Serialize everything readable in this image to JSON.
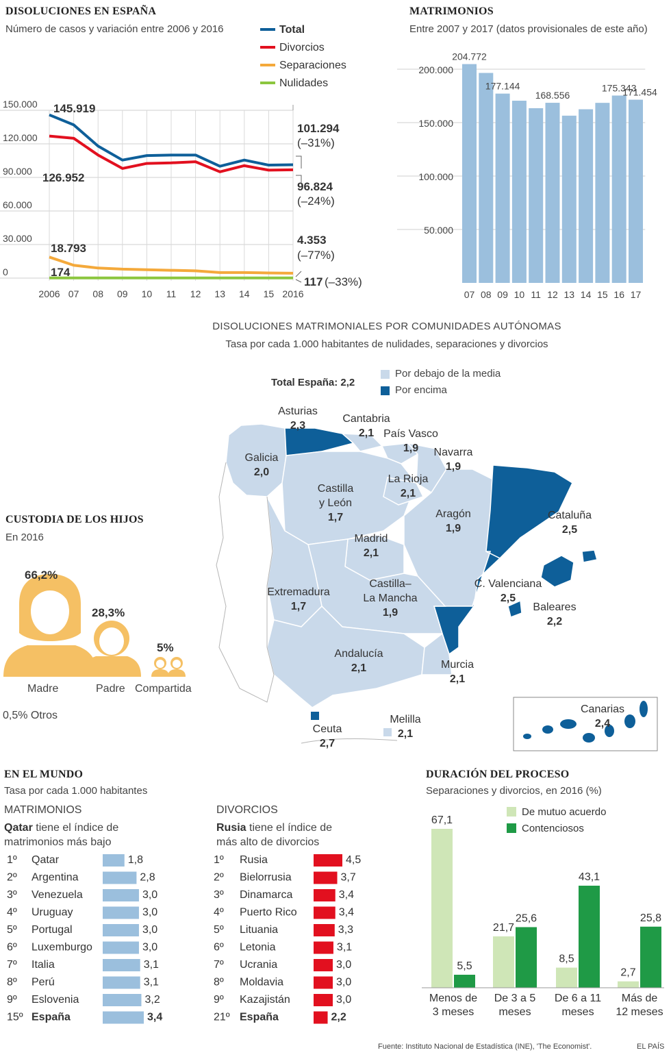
{
  "line_section": {
    "title": "DISOLUCIONES EN ESPAÑA",
    "subtitle": "Número de casos y variación entre 2006 y 2016"
  },
  "bar_section": {
    "title": "MATRIMONIOS",
    "subtitle": "Entre 2007 y 2017 (datos provisionales de este año)"
  },
  "map_section": {
    "title": "DISOLUCIONES MATRIMONIALES POR COMUNIDADES AUTÓNOMAS",
    "subtitle": "Tasa por cada 1.000 habitantes de nulidades, separaciones y divorcios",
    "total_label": "Total España: 2,2",
    "legend_below": "Por debajo de la media",
    "legend_above": "Por encima",
    "colors": {
      "below": "#c9d9ea",
      "above": "#0e5f99"
    },
    "regions": [
      {
        "name": "Asturias",
        "value": "2,3",
        "status": "above"
      },
      {
        "name": "Cantabria",
        "value": "2,1",
        "status": "below"
      },
      {
        "name": "País Vasco",
        "value": "1,9",
        "status": "below"
      },
      {
        "name": "Navarra",
        "value": "1,9",
        "status": "below"
      },
      {
        "name": "Galicia",
        "value": "2,0",
        "status": "below"
      },
      {
        "name": "Castilla",
        "name2": "y León",
        "value": "1,7",
        "status": "below"
      },
      {
        "name": "La Rioja",
        "value": "2,1",
        "status": "below"
      },
      {
        "name": "Aragón",
        "value": "1,9",
        "status": "below"
      },
      {
        "name": "Cataluña",
        "value": "2,5",
        "status": "above"
      },
      {
        "name": "Madrid",
        "value": "2,1",
        "status": "below"
      },
      {
        "name": "C. Valenciana",
        "value": "2,5",
        "status": "above"
      },
      {
        "name": "Extremadura",
        "value": "1,7",
        "status": "below"
      },
      {
        "name": "Castilla–",
        "name2": "La Mancha",
        "value": "1,9",
        "status": "below"
      },
      {
        "name": "Baleares",
        "value": "2,2",
        "status": "above"
      },
      {
        "name": "Andalucía",
        "value": "2,1",
        "status": "below"
      },
      {
        "name": "Murcia",
        "value": "2,1",
        "status": "below"
      },
      {
        "name": "Canarias",
        "value": "2,4",
        "status": "above"
      },
      {
        "name": "Ceuta",
        "value": "2,7",
        "status": "above"
      },
      {
        "name": "Melilla",
        "value": "2,1",
        "status": "below"
      }
    ]
  },
  "custody": {
    "title": "CUSTODIA DE LOS HIJOS",
    "subtitle": "En 2016",
    "color": "#f5c064",
    "items": [
      {
        "label": "Madre",
        "value": "66,2%"
      },
      {
        "label": "Padre",
        "value": "28,3%"
      },
      {
        "label": "Compartida",
        "value": "5%"
      }
    ],
    "others": "0,5% Otros"
  },
  "world": {
    "title": "EN EL MUNDO",
    "subtitle": "Tasa por cada 1.000 habitantes",
    "marriages_heading": "MATRIMONIOS",
    "marriages_note_bold": "Qatar",
    "marriages_note_rest": " tiene el índice de",
    "marriages_note_line2": "matrimonios más bajo",
    "divorces_heading": "DIVORCIOS",
    "divorces_note_bold": "Rusia",
    "divorces_note_rest": " tiene el índice de",
    "divorces_note_line2": "más alto de divorcios"
  },
  "duration": {
    "title": "DURACIÓN DEL PROCESO",
    "subtitle": "Separaciones y divorcios, en 2016 (%)"
  },
  "footer": {
    "source": "Fuente: Instituto Nacional de Estadística (INE), 'The Economist'.",
    "brand": "EL PAÍS"
  },
  "chart_data": [
    {
      "id": "disoluciones",
      "type": "line",
      "x": [
        "2006",
        "07",
        "08",
        "09",
        "10",
        "11",
        "12",
        "13",
        "14",
        "15",
        "2016"
      ],
      "ylim": [
        0,
        150000
      ],
      "yticks": [
        "0",
        "30.000",
        "60.000",
        "90.000",
        "120.000",
        "150.000"
      ],
      "series": [
        {
          "name": "Total",
          "color": "#0e5f99",
          "values": [
            145919,
            137000,
            118000,
            105500,
            109500,
            110000,
            110000,
            100000,
            105500,
            101000,
            101294
          ]
        },
        {
          "name": "Divorcios",
          "color": "#e2101f",
          "values": [
            126952,
            125000,
            110000,
            98000,
            102500,
            103000,
            104000,
            95000,
            100500,
            96500,
            96824
          ]
        },
        {
          "name": "Separaciones",
          "color": "#f4a93b",
          "values": [
            18793,
            11500,
            9000,
            8000,
            7500,
            7000,
            6500,
            5000,
            5000,
            4600,
            4353
          ]
        },
        {
          "name": "Nulidades",
          "color": "#8cc63f",
          "values": [
            174,
            170,
            160,
            150,
            140,
            135,
            130,
            125,
            120,
            118,
            117
          ]
        }
      ],
      "annotations": {
        "start_total": "145.919",
        "start_div": "126.952",
        "start_sep": "18.793",
        "start_nul": "174",
        "end_total": "101.294",
        "end_total_pct": "(–31%)",
        "end_div": "96.824",
        "end_div_pct": "(–24%)",
        "end_sep": "4.353",
        "end_sep_pct": "(–77%)",
        "end_nul": "117",
        "end_nul_pct": "(–33%)"
      }
    },
    {
      "id": "matrimonios",
      "type": "bar",
      "categories": [
        "07",
        "08",
        "09",
        "10",
        "11",
        "12",
        "13",
        "14",
        "15",
        "16",
        "17"
      ],
      "values": [
        204772,
        196500,
        177144,
        170500,
        163500,
        168556,
        156500,
        162500,
        168500,
        175343,
        171454
      ],
      "ylim": [
        0,
        200000
      ],
      "yticks": [
        "50.000",
        "100.000",
        "150.000",
        "200.000"
      ],
      "color": "#9bbfdd",
      "data_labels": [
        {
          "index": 0,
          "text": "204.772"
        },
        {
          "index": 2,
          "text": "177.144"
        },
        {
          "index": 5,
          "text": "168.556"
        },
        {
          "index": 9,
          "text": "175.343"
        },
        {
          "index": 10,
          "text": "171.454"
        }
      ]
    },
    {
      "id": "world_marriages",
      "type": "bar",
      "color": "#9bbfdd",
      "rows": [
        {
          "rank": "1º",
          "country": "Qatar",
          "value": 1.8,
          "label": "1,8"
        },
        {
          "rank": "2º",
          "country": "Argentina",
          "value": 2.8,
          "label": "2,8"
        },
        {
          "rank": "3º",
          "country": "Venezuela",
          "value": 3.0,
          "label": "3,0"
        },
        {
          "rank": "4º",
          "country": "Uruguay",
          "value": 3.0,
          "label": "3,0"
        },
        {
          "rank": "5º",
          "country": "Portugal",
          "value": 3.0,
          "label": "3,0"
        },
        {
          "rank": "6º",
          "country": "Luxemburgo",
          "value": 3.0,
          "label": "3,0"
        },
        {
          "rank": "7º",
          "country": "Italia",
          "value": 3.1,
          "label": "3,1"
        },
        {
          "rank": "8º",
          "country": "Perú",
          "value": 3.1,
          "label": "3,1"
        },
        {
          "rank": "9º",
          "country": "Eslovenia",
          "value": 3.2,
          "label": "3,2"
        },
        {
          "rank": "15º",
          "country": "España",
          "value": 3.4,
          "label": "3,4",
          "highlight": true
        }
      ]
    },
    {
      "id": "world_divorces",
      "type": "bar",
      "color": "#e2101f",
      "rows": [
        {
          "rank": "1º",
          "country": "Rusia",
          "value": 4.5,
          "label": "4,5"
        },
        {
          "rank": "2º",
          "country": "Bielorrusia",
          "value": 3.7,
          "label": "3,7"
        },
        {
          "rank": "3º",
          "country": "Dinamarca",
          "value": 3.4,
          "label": "3,4"
        },
        {
          "rank": "4º",
          "country": "Puerto Rico",
          "value": 3.4,
          "label": "3,4"
        },
        {
          "rank": "5º",
          "country": "Lituania",
          "value": 3.3,
          "label": "3,3"
        },
        {
          "rank": "6º",
          "country": "Letonia",
          "value": 3.1,
          "label": "3,1"
        },
        {
          "rank": "7º",
          "country": "Ucrania",
          "value": 3.0,
          "label": "3,0"
        },
        {
          "rank": "8º",
          "country": "Moldavia",
          "value": 3.0,
          "label": "3,0"
        },
        {
          "rank": "9º",
          "country": "Kazajistán",
          "value": 3.0,
          "label": "3,0"
        },
        {
          "rank": "21º",
          "country": "España",
          "value": 2.2,
          "label": "2,2",
          "highlight": true
        }
      ]
    },
    {
      "id": "duracion",
      "type": "bar",
      "categories": [
        [
          "Menos de",
          "3 meses"
        ],
        [
          "De 3 a 5",
          "meses"
        ],
        [
          "De 6 a 11",
          "meses"
        ],
        [
          "Más de",
          "12 meses"
        ]
      ],
      "ylim": [
        0,
        67.1
      ],
      "series": [
        {
          "name": "De mutuo acuerdo",
          "color": "#cfe6b7",
          "values": [
            67.1,
            21.7,
            8.5,
            2.7
          ],
          "labels": [
            "67,1",
            "21,7",
            "8,5",
            "2,7"
          ]
        },
        {
          "name": "Contenciosos",
          "color": "#1f9a46",
          "values": [
            5.5,
            25.6,
            43.1,
            25.8
          ],
          "labels": [
            "5,5",
            "25,6",
            "43,1",
            "25,8"
          ]
        }
      ]
    }
  ]
}
